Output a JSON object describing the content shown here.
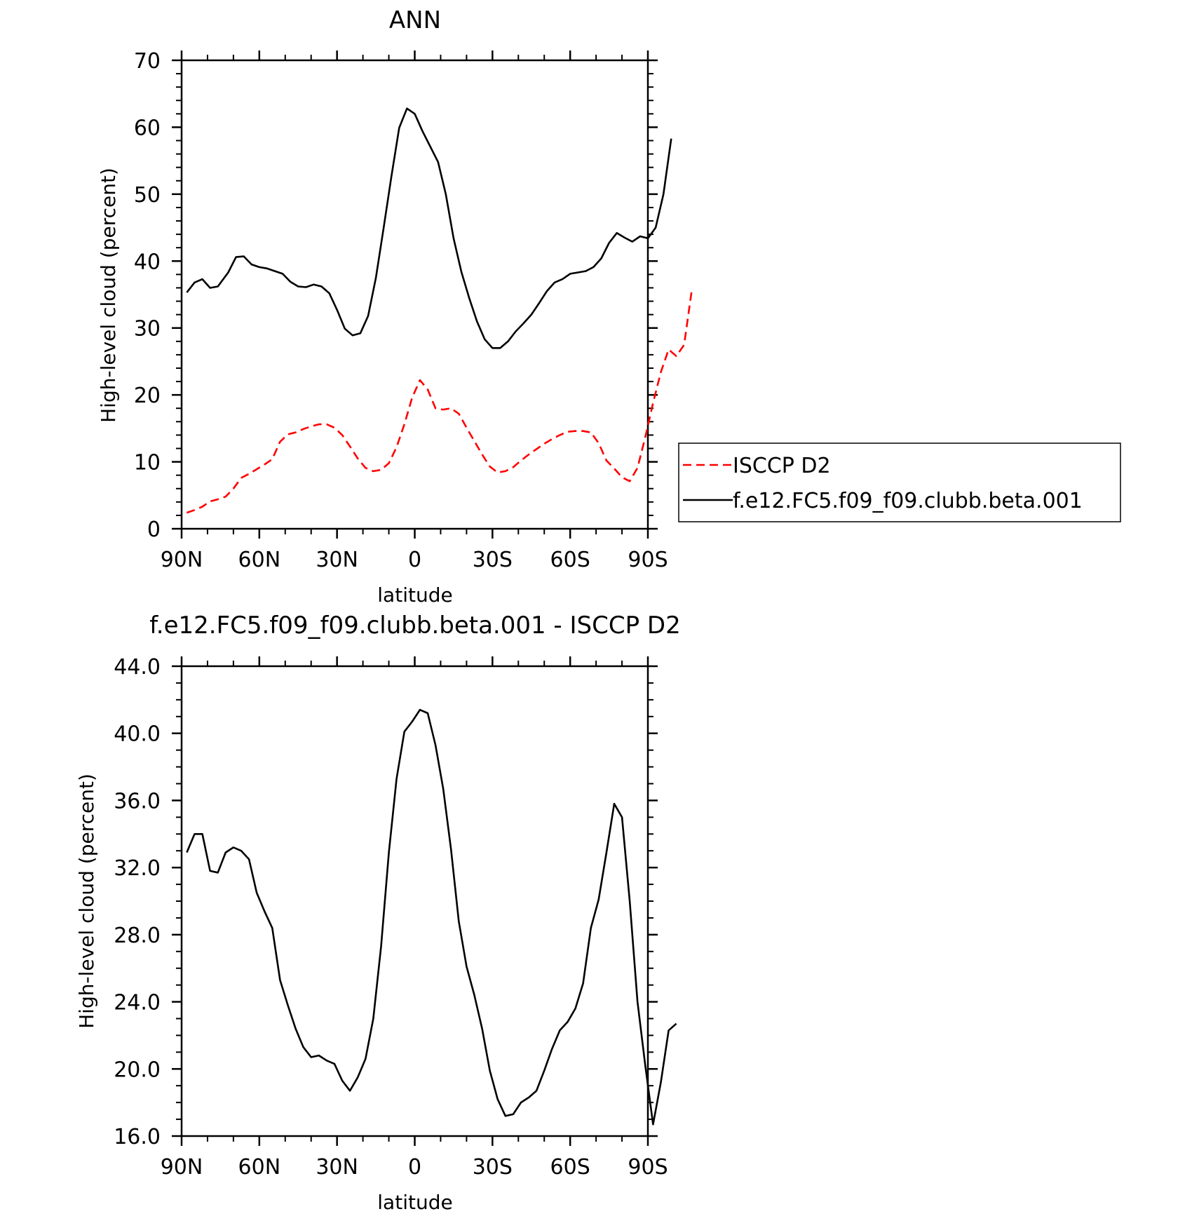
{
  "chart_data": [
    {
      "type": "line",
      "title": "ANN",
      "xlabel": "latitude",
      "ylabel": "High-level cloud (percent)",
      "xlim": [
        -90,
        90
      ],
      "ylim": [
        0,
        70
      ],
      "x_ticks": [
        {
          "value": -90,
          "label": "90N"
        },
        {
          "value": -60,
          "label": "60N"
        },
        {
          "value": -30,
          "label": "30N"
        },
        {
          "value": 0,
          "label": "0"
        },
        {
          "value": 30,
          "label": "30S"
        },
        {
          "value": 60,
          "label": "60S"
        },
        {
          "value": 90,
          "label": "90S"
        }
      ],
      "y_ticks": [
        {
          "value": 0,
          "label": "0"
        },
        {
          "value": 10,
          "label": "10"
        },
        {
          "value": 20,
          "label": "20"
        },
        {
          "value": 30,
          "label": "30"
        },
        {
          "value": 40,
          "label": "40"
        },
        {
          "value": 50,
          "label": "50"
        },
        {
          "value": 60,
          "label": "60"
        },
        {
          "value": 70,
          "label": "70"
        }
      ],
      "legend": {
        "position": "right",
        "entries": [
          {
            "name": "ISCCP D2",
            "color": "#ff0000",
            "style": "dashed"
          },
          {
            "name": "f.e12.FC5.f09_f09.clubb.beta.001",
            "color": "#000000",
            "style": "solid"
          }
        ]
      },
      "series": [
        {
          "name": "f.e12.FC5.f09_f09.clubb.beta.001",
          "color": "#000000",
          "style": "solid",
          "points": [
            [
              -88,
              35.3
            ],
            [
              -85,
              36.8
            ],
            [
              -82,
              37.3
            ],
            [
              -79,
              36
            ],
            [
              -76,
              36.2
            ],
            [
              -72,
              38.3
            ],
            [
              -69,
              40.6
            ],
            [
              -66,
              40.7
            ],
            [
              -63,
              39.5
            ],
            [
              -60,
              39.1
            ],
            [
              -57,
              38.9
            ],
            [
              -54,
              38.5
            ],
            [
              -51,
              38.1
            ],
            [
              -48,
              36.9
            ],
            [
              -45,
              36.2
            ],
            [
              -42,
              36.1
            ],
            [
              -39,
              36.5
            ],
            [
              -36,
              36.2
            ],
            [
              -33,
              35.2
            ],
            [
              -30,
              32.7
            ],
            [
              -27,
              29.9
            ],
            [
              -24,
              28.9
            ],
            [
              -21,
              29.2
            ],
            [
              -18,
              31.8
            ],
            [
              -15,
              37.5
            ],
            [
              -12,
              45
            ],
            [
              -9,
              52.7
            ],
            [
              -6,
              59.9
            ],
            [
              -3,
              62.8
            ],
            [
              0,
              62
            ],
            [
              3,
              59.4
            ],
            [
              6,
              57.1
            ],
            [
              9,
              54.8
            ],
            [
              12,
              50
            ],
            [
              15,
              43.4
            ],
            [
              18,
              38.4
            ],
            [
              21,
              34.5
            ],
            [
              24,
              31
            ],
            [
              27,
              28.3
            ],
            [
              30,
              27
            ],
            [
              33,
              27
            ],
            [
              36,
              28
            ],
            [
              39,
              29.5
            ],
            [
              42,
              30.7
            ],
            [
              45,
              32
            ],
            [
              48,
              33.7
            ],
            [
              51,
              35.5
            ],
            [
              54,
              36.8
            ],
            [
              57,
              37.3
            ],
            [
              60,
              38.1
            ],
            [
              63,
              38.3
            ],
            [
              66,
              38.5
            ],
            [
              69,
              39.1
            ],
            [
              72,
              40.4
            ],
            [
              75,
              42.7
            ],
            [
              78,
              44.2
            ],
            [
              81,
              43.5
            ],
            [
              84,
              42.9
            ],
            [
              87,
              43.7
            ],
            [
              90,
              43.4
            ],
            [
              93,
              45
            ],
            [
              96,
              50
            ],
            [
              99,
              58.3
            ]
          ]
        },
        {
          "name": "ISCCP D2",
          "color": "#ff0000",
          "style": "dashed",
          "points": [
            [
              -88,
              2.4
            ],
            [
              -85,
              2.8
            ],
            [
              -82,
              3.3
            ],
            [
              -79,
              4.1
            ],
            [
              -76,
              4.4
            ],
            [
              -73,
              4.8
            ],
            [
              -70,
              6
            ],
            [
              -67,
              7.6
            ],
            [
              -64,
              8.2
            ],
            [
              -61,
              8.9
            ],
            [
              -58,
              9.6
            ],
            [
              -55,
              10.4
            ],
            [
              -52,
              13
            ],
            [
              -49,
              14.1
            ],
            [
              -46,
              14.4
            ],
            [
              -43,
              14.9
            ],
            [
              -40,
              15.3
            ],
            [
              -37,
              15.6
            ],
            [
              -34,
              15.6
            ],
            [
              -31,
              15.1
            ],
            [
              -28,
              14
            ],
            [
              -25,
              12.3
            ],
            [
              -22,
              10.5
            ],
            [
              -19,
              9.1
            ],
            [
              -16,
              8.6
            ],
            [
              -13,
              8.8
            ],
            [
              -10,
              9.8
            ],
            [
              -7,
              12.2
            ],
            [
              -4,
              15.6
            ],
            [
              -1,
              19.6
            ],
            [
              2,
              22.2
            ],
            [
              5,
              20.8
            ],
            [
              8,
              18
            ],
            [
              11,
              17.8
            ],
            [
              14,
              18
            ],
            [
              17,
              17.2
            ],
            [
              20,
              15.1
            ],
            [
              23,
              13.1
            ],
            [
              26,
              11.1
            ],
            [
              29,
              9.3
            ],
            [
              32,
              8.4
            ],
            [
              35,
              8.6
            ],
            [
              38,
              9.2
            ],
            [
              41,
              10.2
            ],
            [
              44,
              11.1
            ],
            [
              47,
              11.9
            ],
            [
              50,
              12.7
            ],
            [
              53,
              13.4
            ],
            [
              56,
              14
            ],
            [
              59,
              14.5
            ],
            [
              62,
              14.6
            ],
            [
              65,
              14.6
            ],
            [
              68,
              14.4
            ],
            [
              71,
              12.8
            ],
            [
              74,
              10.2
            ],
            [
              77,
              9
            ],
            [
              80,
              7.7
            ],
            [
              83,
              7.1
            ],
            [
              86,
              9.1
            ],
            [
              89,
              13.7
            ],
            [
              92,
              18.8
            ],
            [
              95,
              23.4
            ],
            [
              98,
              26.8
            ],
            [
              101,
              25.8
            ],
            [
              104,
              27.5
            ],
            [
              107,
              35.8
            ]
          ]
        }
      ]
    },
    {
      "type": "line",
      "title": "f.e12.FC5.f09_f09.clubb.beta.001 - ISCCP D2",
      "xlabel": "latitude",
      "ylabel": "High-level cloud (percent)",
      "xlim": [
        -90,
        90
      ],
      "ylim": [
        16,
        44
      ],
      "x_ticks": [
        {
          "value": -90,
          "label": "90N"
        },
        {
          "value": -60,
          "label": "60N"
        },
        {
          "value": -30,
          "label": "30N"
        },
        {
          "value": 0,
          "label": "0"
        },
        {
          "value": 30,
          "label": "30S"
        },
        {
          "value": 60,
          "label": "60S"
        },
        {
          "value": 90,
          "label": "90S"
        }
      ],
      "y_ticks": [
        {
          "value": 16,
          "label": "16.0"
        },
        {
          "value": 20,
          "label": "20.0"
        },
        {
          "value": 24,
          "label": "24.0"
        },
        {
          "value": 28,
          "label": "28.0"
        },
        {
          "value": 32,
          "label": "32.0"
        },
        {
          "value": 36,
          "label": "36.0"
        },
        {
          "value": 40,
          "label": "40.0"
        },
        {
          "value": 44,
          "label": "44.0"
        }
      ],
      "series": [
        {
          "color": "#000000",
          "style": "solid",
          "points": [
            [
              -88,
              32.9
            ],
            [
              -85,
              34
            ],
            [
              -82,
              34
            ],
            [
              -79,
              31.8
            ],
            [
              -76,
              31.7
            ],
            [
              -73,
              32.9
            ],
            [
              -70,
              33.2
            ],
            [
              -67,
              33
            ],
            [
              -64,
              32.5
            ],
            [
              -61,
              30.5
            ],
            [
              -58,
              29.4
            ],
            [
              -55,
              28.4
            ],
            [
              -52,
              25.3
            ],
            [
              -49,
              23.8
            ],
            [
              -46,
              22.4
            ],
            [
              -43,
              21.3
            ],
            [
              -40,
              20.7
            ],
            [
              -37,
              20.8
            ],
            [
              -34,
              20.5
            ],
            [
              -31,
              20.3
            ],
            [
              -28,
              19.3
            ],
            [
              -25,
              18.7
            ],
            [
              -22,
              19.5
            ],
            [
              -19,
              20.6
            ],
            [
              -16,
              23
            ],
            [
              -13,
              27.3
            ],
            [
              -10,
              32.9
            ],
            [
              -7,
              37.3
            ],
            [
              -4,
              40.1
            ],
            [
              -1,
              40.7
            ],
            [
              2,
              41.4
            ],
            [
              5,
              41.2
            ],
            [
              8,
              39.3
            ],
            [
              11,
              36.7
            ],
            [
              14,
              33.1
            ],
            [
              17,
              28.8
            ],
            [
              20,
              26.1
            ],
            [
              23,
              24.4
            ],
            [
              26,
              22.4
            ],
            [
              29,
              19.9
            ],
            [
              32,
              18.2
            ],
            [
              35,
              17.2
            ],
            [
              38,
              17.3
            ],
            [
              41,
              18
            ],
            [
              44,
              18.3
            ],
            [
              47,
              18.7
            ],
            [
              50,
              19.9
            ],
            [
              53,
              21.2
            ],
            [
              56,
              22.3
            ],
            [
              59,
              22.8
            ],
            [
              62,
              23.6
            ],
            [
              65,
              25.1
            ],
            [
              68,
              28.4
            ],
            [
              71,
              30.1
            ],
            [
              74,
              32.9
            ],
            [
              77,
              35.8
            ],
            [
              80,
              35
            ],
            [
              83,
              30
            ],
            [
              86,
              24
            ],
            [
              89,
              20.2
            ],
            [
              92,
              16.7
            ],
            [
              95,
              19.2
            ],
            [
              98,
              22.3
            ],
            [
              101,
              22.7
            ]
          ]
        }
      ]
    }
  ]
}
